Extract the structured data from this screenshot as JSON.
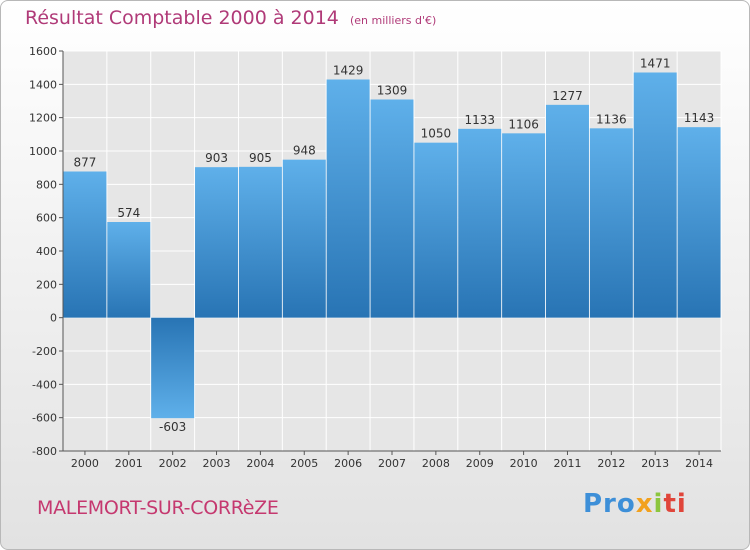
{
  "chart_data": {
    "type": "bar",
    "title": "Résultat Comptable 2000 à 2014",
    "subtitle": "(en milliers d'€)",
    "categories": [
      "2000",
      "2001",
      "2002",
      "2003",
      "2004",
      "2005",
      "2006",
      "2007",
      "2008",
      "2009",
      "2010",
      "2011",
      "2012",
      "2013",
      "2014"
    ],
    "values": [
      877,
      574,
      -603,
      903,
      905,
      948,
      1429,
      1309,
      1050,
      1133,
      1106,
      1277,
      1136,
      1471,
      1143
    ],
    "ylim": [
      -800,
      1600
    ],
    "yticks": [
      -800,
      -600,
      -400,
      -200,
      0,
      200,
      400,
      600,
      800,
      1000,
      1200,
      1400,
      1600
    ],
    "grid": true,
    "bar_color_light": "#5fb0ea",
    "bar_color_dark": "#2874b4"
  },
  "footer": {
    "commune": "MALEMORT-SUR-CORRèZE",
    "brand": [
      "Pro",
      "x",
      "i",
      "ti"
    ]
  },
  "colors": {
    "title": "#b03a78",
    "commune": "#c5386f"
  }
}
